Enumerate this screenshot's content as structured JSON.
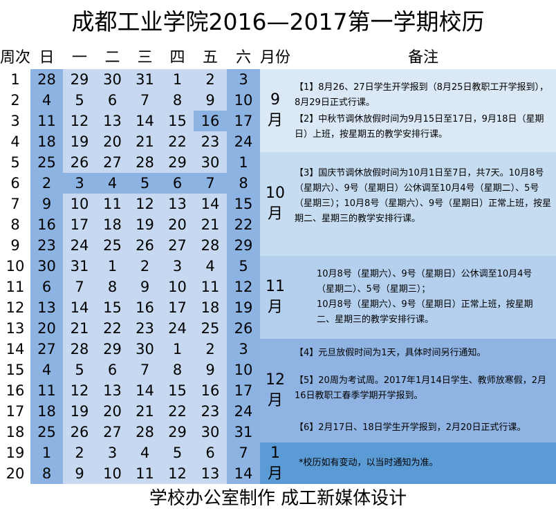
{
  "title": "成都工业学院2016—2017第一学期校历",
  "headers": {
    "week": "周次",
    "days": [
      "日",
      "一",
      "二",
      "三",
      "四",
      "五",
      "六"
    ],
    "month": "月份",
    "notes": "备注"
  },
  "weeks": [
    {
      "n": "1",
      "d": [
        "28",
        "29",
        "30",
        "31",
        "1",
        "2",
        "3"
      ]
    },
    {
      "n": "2",
      "d": [
        "4",
        "5",
        "6",
        "7",
        "8",
        "9",
        "10"
      ]
    },
    {
      "n": "3",
      "d": [
        "11",
        "12",
        "13",
        "14",
        "15",
        "16",
        "17"
      ]
    },
    {
      "n": "4",
      "d": [
        "18",
        "19",
        "20",
        "21",
        "22",
        "23",
        "24"
      ]
    },
    {
      "n": "5",
      "d": [
        "25",
        "26",
        "27",
        "28",
        "29",
        "30",
        "1"
      ]
    },
    {
      "n": "6",
      "d": [
        "2",
        "3",
        "4",
        "5",
        "6",
        "7",
        "8"
      ]
    },
    {
      "n": "7",
      "d": [
        "9",
        "10",
        "11",
        "12",
        "13",
        "14",
        "15"
      ]
    },
    {
      "n": "8",
      "d": [
        "16",
        "17",
        "18",
        "19",
        "20",
        "21",
        "22"
      ]
    },
    {
      "n": "9",
      "d": [
        "23",
        "24",
        "25",
        "26",
        "27",
        "28",
        "29"
      ]
    },
    {
      "n": "10",
      "d": [
        "30",
        "31",
        "1",
        "2",
        "3",
        "4",
        "5"
      ]
    },
    {
      "n": "11",
      "d": [
        "6",
        "7",
        "8",
        "9",
        "10",
        "11",
        "12"
      ]
    },
    {
      "n": "12",
      "d": [
        "13",
        "14",
        "15",
        "16",
        "17",
        "18",
        "19"
      ]
    },
    {
      "n": "13",
      "d": [
        "20",
        "21",
        "22",
        "23",
        "24",
        "25",
        "26"
      ]
    },
    {
      "n": "14",
      "d": [
        "27",
        "28",
        "29",
        "30",
        "1",
        "2",
        "3"
      ]
    },
    {
      "n": "15",
      "d": [
        "4",
        "5",
        "6",
        "7",
        "8",
        "9",
        "10"
      ]
    },
    {
      "n": "16",
      "d": [
        "11",
        "12",
        "13",
        "14",
        "15",
        "16",
        "17"
      ]
    },
    {
      "n": "17",
      "d": [
        "18",
        "19",
        "20",
        "21",
        "22",
        "23",
        "24"
      ]
    },
    {
      "n": "18",
      "d": [
        "25",
        "26",
        "27",
        "28",
        "29",
        "30",
        "31"
      ]
    },
    {
      "n": "19",
      "d": [
        "1",
        "2",
        "3",
        "4",
        "5",
        "6",
        "7"
      ]
    },
    {
      "n": "20",
      "d": [
        "8",
        "9",
        "10",
        "11",
        "12",
        "13",
        "14"
      ]
    }
  ],
  "colors": {
    "weekday": "#c6d9f0",
    "weekend": "#8db3e2",
    "holiday": "#8db3e2",
    "section_sep": "#dbe8f5",
    "section_oct": "#c6dcf1",
    "section_nov": "#b4d0ee",
    "section_dec": "#8fb4e3",
    "section_jan": "#5b9bd5"
  },
  "months": [
    {
      "label": "9\n月"
    },
    {
      "label": "10\n月"
    },
    {
      "label": "11\n月"
    },
    {
      "label": "12\n月"
    },
    {
      "label": "1\n月"
    }
  ],
  "notes": {
    "sep": [
      "【1】8月26、27日学生开学报到（8月25日教职工开学报到），8月29日正式行课。",
      "【2】中秋节调休放假时间为9月15日至17日，9月18日（星期日）上班，按星期五的教学安排行课。"
    ],
    "oct": [
      "【3】国庆节调休放假时间为10月1日至7日，共7天。10月8号（星期六）、9号（星期日）公休调至10月4号（星期二）、5号（星期三）；10月8号（星期六）、9号（星期日）正常上班，按星期二、星期三的教学安排行课。"
    ],
    "nov": [
      "10月8号（星期六）、9号（星期日）公休调至10月4号（星期二）、5号（星期三）；",
      "10月8号（星期六）、9号（星期日）正常上班，按星期二、星期三的教学安排行课。"
    ],
    "dec": [
      "【4】元旦放假时间为1天，具体时间另行通知。",
      "【5】20周为考试周。2017年1月14日学生、教师放寒假，2月16日教职工春季学期开学报到。",
      "【6】2月17日、18日学生开学报到，2月20日正式行课。"
    ],
    "jan": [
      "*校历如有变动，以当时通知为准。"
    ]
  },
  "footer": "学校办公室制作   成工新媒体设计"
}
